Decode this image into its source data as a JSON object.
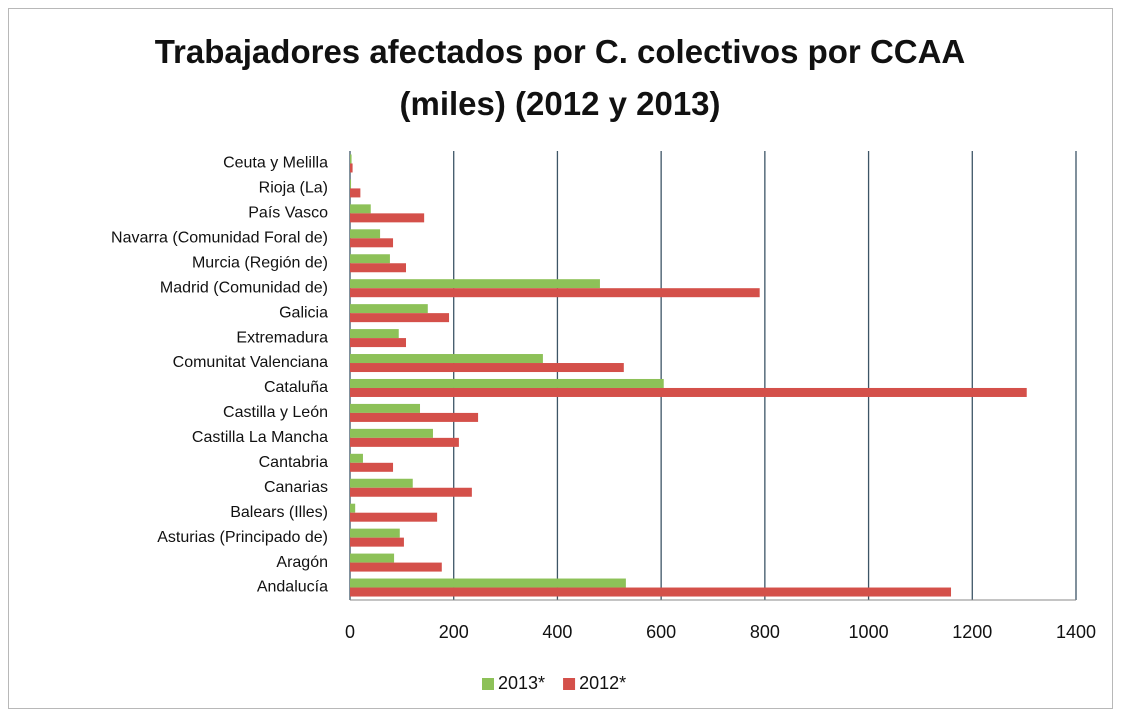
{
  "chart_data": {
    "type": "hbar",
    "title": "Trabajadores afectados por C. colectivos por CCAA (miles) (2012 y 2013)",
    "categories": [
      "Ceuta y Melilla",
      "Rioja (La)",
      "País Vasco",
      "Navarra (Comunidad Foral de)",
      "Murcia (Región de)",
      "Madrid (Comunidad de)",
      "Galicia",
      "Extremadura",
      "Comunitat Valenciana",
      "Cataluña",
      "Castilla y León",
      "Castilla La Mancha",
      "Cantabria",
      "Canarias",
      "Balears (Illes)",
      "Asturias (Principado de)",
      "Aragón",
      "Andalucía"
    ],
    "series": [
      {
        "name": "2013*",
        "color": "#8dc158",
        "values": [
          3,
          2,
          40,
          58,
          77,
          482,
          150,
          94,
          372,
          605,
          135,
          160,
          25,
          121,
          10,
          96,
          85,
          532
        ]
      },
      {
        "name": "2012*",
        "color": "#d4504a",
        "values": [
          5,
          20,
          143,
          83,
          108,
          790,
          191,
          108,
          528,
          1305,
          247,
          210,
          83,
          235,
          168,
          104,
          177,
          1159
        ]
      }
    ],
    "xlim": [
      0,
      1400
    ],
    "xticks": [
      0,
      200,
      400,
      600,
      800,
      1000,
      1200,
      1400
    ],
    "grid": true,
    "legend": "bottom"
  }
}
